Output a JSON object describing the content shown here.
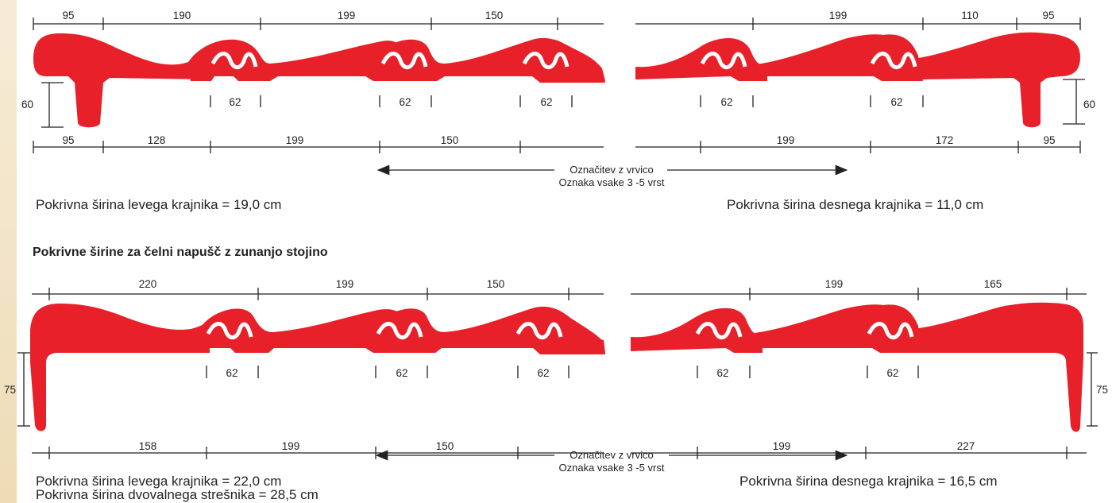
{
  "colors": {
    "tile": "#e8202a",
    "line": "#222222",
    "background_stripe": "#f3e6c8"
  },
  "section_heading": "Pokrivne širine za čelni napušč z zunanjo stojino",
  "top": {
    "left": {
      "top_dims": [
        "95",
        "190",
        "199",
        "150"
      ],
      "bottom_dims": [
        "95",
        "128",
        "199",
        "150"
      ],
      "overlaps": [
        "62",
        "62",
        "62"
      ],
      "height": "60",
      "caption": "Pokrivna širina levega krajnika = 19,0 cm"
    },
    "right": {
      "top_dims": [
        "199",
        "110",
        "95"
      ],
      "bottom_dims": [
        "199",
        "172",
        "95"
      ],
      "overlaps": [
        "62",
        "62"
      ],
      "height": "60",
      "caption": "Pokrivna širina desnega krajnika = 11,0 cm"
    },
    "marking": {
      "line1": "Označitev z vrvico",
      "line2": "Oznaka vsake 3 -5 vrst"
    }
  },
  "bottom": {
    "left": {
      "top_dims": [
        "220",
        "199",
        "150"
      ],
      "bottom_dims": [
        "158",
        "199",
        "150"
      ],
      "overlaps": [
        "62",
        "62",
        "62"
      ],
      "height": "75",
      "caption": "Pokrivna širina levega krajnika = 22,0 cm",
      "caption2": "Pokrivna širina dvovalnega strešnika = 28,5 cm"
    },
    "right": {
      "top_dims": [
        "199",
        "165"
      ],
      "bottom_dims": [
        "199",
        "227"
      ],
      "overlaps": [
        "62",
        "62"
      ],
      "height": "75",
      "caption": "Pokrivna širina desnega krajnika = 16,5 cm"
    },
    "marking": {
      "line1": "Označitev z vrvico",
      "line2": "Oznaka vsake 3 -5 vrst"
    }
  }
}
